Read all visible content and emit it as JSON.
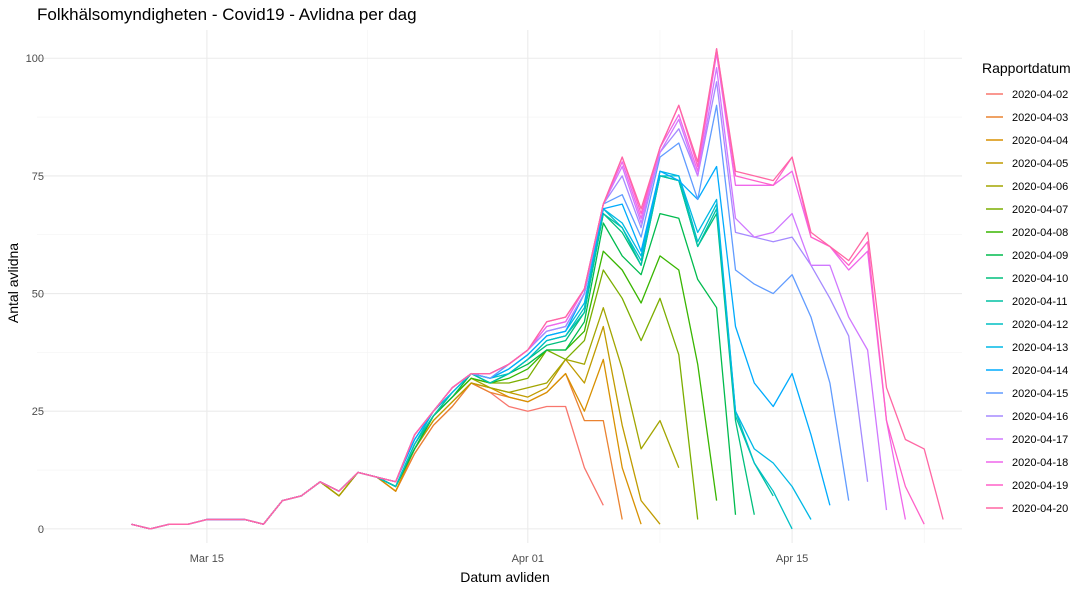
{
  "chart_data": {
    "type": "line",
    "title": "Folkhälsomyndigheten - Covid19 - Avlidna per dag",
    "xlabel": "Datum avliden",
    "ylabel": "Antal avlidna",
    "x_start": "2020-03-11",
    "x_ticks": [
      {
        "date": "2020-03-15",
        "label": "Mar 15"
      },
      {
        "date": "2020-04-01",
        "label": "Apr 01"
      },
      {
        "date": "2020-04-15",
        "label": "Apr 15"
      }
    ],
    "xlim": [
      "2020-03-06",
      "2020-04-24"
    ],
    "ylim": [
      -3,
      106
    ],
    "y_ticks": [
      0,
      25,
      50,
      75,
      100
    ],
    "grid": true,
    "legend": {
      "title": "Rapportdatum",
      "position": "right"
    },
    "series": [
      {
        "name": "2020-04-02",
        "color": "#F8766D",
        "values": [
          1,
          0,
          1,
          1,
          2,
          2,
          2,
          1,
          6,
          7,
          10,
          7,
          12,
          11,
          8,
          16,
          22,
          26,
          31,
          29,
          26,
          25,
          26,
          26,
          13,
          5
        ]
      },
      {
        "name": "2020-04-03",
        "color": "#EA8331",
        "values": [
          1,
          0,
          1,
          1,
          2,
          2,
          2,
          1,
          6,
          7,
          10,
          7,
          12,
          11,
          8,
          16,
          22,
          26,
          31,
          29,
          28,
          27,
          29,
          33,
          23,
          23,
          2
        ]
      },
      {
        "name": "2020-04-04",
        "color": "#D89000",
        "values": [
          1,
          0,
          1,
          1,
          2,
          2,
          2,
          1,
          6,
          7,
          10,
          7,
          12,
          11,
          8,
          17,
          23,
          27,
          31,
          30,
          28,
          27,
          29,
          33,
          25,
          36,
          13,
          1
        ]
      },
      {
        "name": "2020-04-05",
        "color": "#C09B00",
        "values": [
          1,
          0,
          1,
          1,
          2,
          2,
          2,
          1,
          6,
          7,
          10,
          7,
          12,
          11,
          9,
          17,
          23,
          27,
          31,
          30,
          29,
          28,
          30,
          36,
          31,
          43,
          22,
          6,
          1
        ]
      },
      {
        "name": "2020-04-06",
        "color": "#A3A500",
        "values": [
          1,
          0,
          1,
          1,
          2,
          2,
          2,
          1,
          6,
          7,
          10,
          7,
          12,
          11,
          9,
          17,
          24,
          28,
          32,
          30,
          29,
          30,
          31,
          36,
          35,
          47,
          34,
          17,
          23,
          13
        ]
      },
      {
        "name": "2020-04-07",
        "color": "#7CAE00",
        "values": [
          1,
          0,
          1,
          1,
          2,
          2,
          2,
          1,
          6,
          7,
          10,
          8,
          12,
          11,
          9,
          17,
          24,
          28,
          32,
          31,
          31,
          32,
          38,
          36,
          40,
          55,
          49,
          40,
          49,
          37,
          2
        ]
      },
      {
        "name": "2020-04-08",
        "color": "#39B600",
        "values": [
          1,
          0,
          1,
          1,
          2,
          2,
          2,
          1,
          6,
          7,
          10,
          8,
          12,
          11,
          9,
          17,
          24,
          28,
          32,
          31,
          32,
          34,
          38,
          38,
          42,
          59,
          55,
          48,
          58,
          55,
          35,
          6
        ]
      },
      {
        "name": "2020-04-09",
        "color": "#00BB4E",
        "values": [
          1,
          0,
          1,
          1,
          2,
          2,
          2,
          1,
          6,
          7,
          10,
          8,
          12,
          11,
          9,
          17,
          24,
          28,
          33,
          31,
          33,
          35,
          38,
          38,
          44,
          65,
          58,
          54,
          67,
          66,
          53,
          47,
          3
        ]
      },
      {
        "name": "2020-04-10",
        "color": "#00BF7D",
        "values": [
          1,
          0,
          1,
          1,
          2,
          2,
          2,
          1,
          6,
          7,
          10,
          8,
          12,
          11,
          9,
          18,
          24,
          29,
          33,
          31,
          33,
          36,
          39,
          40,
          46,
          67,
          63,
          56,
          75,
          74,
          60,
          67,
          23,
          3
        ]
      },
      {
        "name": "2020-04-11",
        "color": "#00C1A3",
        "values": [
          1,
          0,
          1,
          1,
          2,
          2,
          2,
          1,
          6,
          7,
          10,
          8,
          12,
          11,
          9,
          18,
          24,
          29,
          33,
          31,
          33,
          36,
          40,
          41,
          46,
          67,
          64,
          56,
          75,
          74,
          60,
          68,
          24,
          14,
          7
        ]
      },
      {
        "name": "2020-04-12",
        "color": "#00BFC4",
        "values": [
          1,
          0,
          1,
          1,
          2,
          2,
          2,
          1,
          6,
          7,
          10,
          8,
          12,
          11,
          9,
          18,
          25,
          29,
          33,
          32,
          33,
          36,
          40,
          41,
          47,
          68,
          64,
          57,
          75,
          75,
          61,
          69,
          25,
          14,
          8,
          0
        ]
      },
      {
        "name": "2020-04-13",
        "color": "#00B8E5",
        "values": [
          1,
          0,
          1,
          1,
          2,
          2,
          2,
          1,
          6,
          7,
          10,
          8,
          12,
          11,
          10,
          19,
          25,
          29,
          33,
          32,
          34,
          37,
          41,
          42,
          48,
          68,
          65,
          58,
          76,
          75,
          63,
          70,
          25,
          17,
          14,
          9,
          2
        ]
      },
      {
        "name": "2020-04-14",
        "color": "#00ABFD",
        "values": [
          1,
          0,
          1,
          1,
          2,
          2,
          2,
          1,
          6,
          7,
          10,
          8,
          12,
          11,
          10,
          19,
          25,
          30,
          33,
          32,
          34,
          37,
          41,
          42,
          50,
          68,
          69,
          59,
          76,
          74,
          70,
          77,
          43,
          31,
          26,
          33,
          20,
          5
        ]
      },
      {
        "name": "2020-04-15",
        "color": "#619CFF",
        "values": [
          1,
          0,
          1,
          1,
          2,
          2,
          2,
          1,
          6,
          7,
          10,
          8,
          12,
          11,
          10,
          20,
          25,
          30,
          33,
          32,
          35,
          38,
          42,
          43,
          50,
          69,
          71,
          62,
          79,
          82,
          70,
          90,
          55,
          52,
          50,
          54,
          45,
          31,
          6
        ]
      },
      {
        "name": "2020-04-16",
        "color": "#A58AFF",
        "values": [
          1,
          0,
          1,
          1,
          2,
          2,
          2,
          1,
          6,
          7,
          10,
          8,
          12,
          11,
          10,
          20,
          25,
          30,
          33,
          33,
          35,
          38,
          42,
          43,
          50,
          69,
          75,
          64,
          80,
          85,
          75,
          95,
          63,
          62,
          61,
          62,
          56,
          49,
          41,
          10
        ]
      },
      {
        "name": "2020-04-17",
        "color": "#D078FF",
        "values": [
          1,
          0,
          1,
          1,
          2,
          2,
          2,
          1,
          6,
          7,
          10,
          8,
          12,
          11,
          10,
          20,
          25,
          30,
          33,
          33,
          35,
          38,
          43,
          44,
          51,
          69,
          77,
          65,
          80,
          87,
          75,
          98,
          66,
          62,
          63,
          67,
          56,
          56,
          45,
          38,
          4
        ]
      },
      {
        "name": "2020-04-18",
        "color": "#EF67EB",
        "values": [
          1,
          0,
          1,
          1,
          2,
          2,
          2,
          1,
          6,
          7,
          10,
          8,
          12,
          11,
          10,
          20,
          25,
          30,
          33,
          33,
          35,
          38,
          43,
          44,
          51,
          69,
          78,
          66,
          81,
          88,
          76,
          101,
          73,
          73,
          73,
          76,
          62,
          60,
          55,
          59,
          23,
          2
        ]
      },
      {
        "name": "2020-04-19",
        "color": "#FF61C9",
        "values": [
          1,
          0,
          1,
          1,
          2,
          2,
          2,
          1,
          6,
          7,
          10,
          8,
          12,
          11,
          10,
          20,
          25,
          30,
          33,
          33,
          35,
          38,
          44,
          45,
          51,
          69,
          79,
          67,
          81,
          90,
          77,
          102,
          75,
          74,
          73,
          79,
          62,
          60,
          56,
          61,
          23,
          9,
          1
        ]
      },
      {
        "name": "2020-04-20",
        "color": "#FF67A4",
        "values": [
          1,
          0,
          1,
          1,
          2,
          2,
          2,
          1,
          6,
          7,
          10,
          8,
          12,
          11,
          10,
          20,
          25,
          30,
          33,
          33,
          35,
          38,
          44,
          45,
          51,
          69,
          79,
          68,
          81,
          90,
          78,
          102,
          76,
          75,
          74,
          79,
          63,
          60,
          57,
          63,
          30,
          19,
          17,
          2
        ]
      }
    ]
  }
}
